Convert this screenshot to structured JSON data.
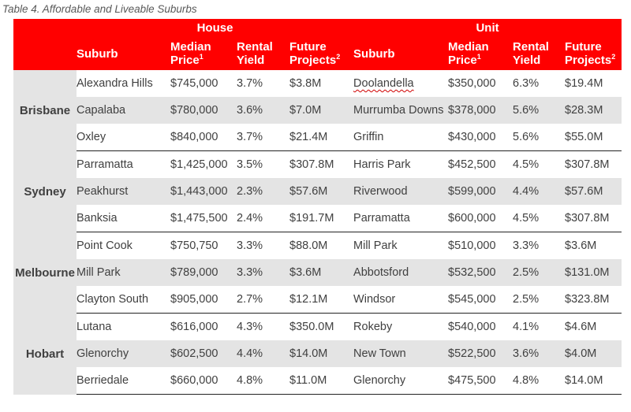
{
  "caption": "Table 4. Affordable and Liveable Suburbs",
  "header": {
    "house": "House",
    "unit": "Unit",
    "suburb": "Suburb",
    "median_price": "Median Price",
    "rental_yield": "Rental Yield",
    "future_projects": "Future Projects",
    "median_price_note": "1",
    "future_projects_note": "2"
  },
  "groups": [
    {
      "city": "Brisbane",
      "rows": [
        {
          "h_suburb": "Alexandra Hills",
          "h_price": "$745,000",
          "h_yield": "3.7%",
          "h_proj": "$3.8M",
          "u_suburb": "Doolandella",
          "u_price": "$350,000",
          "u_yield": "6.3%",
          "u_proj": "$19.4M"
        },
        {
          "h_suburb": "Capalaba",
          "h_price": "$780,000",
          "h_yield": "3.6%",
          "h_proj": "$7.0M",
          "u_suburb": "Murrumba Downs",
          "u_price": "$378,000",
          "u_yield": "5.6%",
          "u_proj": "$28.3M"
        },
        {
          "h_suburb": "Oxley",
          "h_price": "$840,000",
          "h_yield": "3.7%",
          "h_proj": "$21.4M",
          "u_suburb": "Griffin",
          "u_price": "$430,000",
          "u_yield": "5.6%",
          "u_proj": "$55.0M"
        }
      ]
    },
    {
      "city": "Sydney",
      "rows": [
        {
          "h_suburb": "Parramatta",
          "h_price": "$1,425,000",
          "h_yield": "3.5%",
          "h_proj": "$307.8M",
          "u_suburb": "Harris Park",
          "u_price": "$452,500",
          "u_yield": "4.5%",
          "u_proj": "$307.8M"
        },
        {
          "h_suburb": "Peakhurst",
          "h_price": "$1,443,000",
          "h_yield": "2.3%",
          "h_proj": "$57.6M",
          "u_suburb": "Riverwood",
          "u_price": "$599,000",
          "u_yield": "4.4%",
          "u_proj": "$57.6M"
        },
        {
          "h_suburb": "Banksia",
          "h_price": "$1,475,500",
          "h_yield": "2.4%",
          "h_proj": "$191.7M",
          "u_suburb": "Parramatta",
          "u_price": "$600,000",
          "u_yield": "4.5%",
          "u_proj": "$307.8M"
        }
      ]
    },
    {
      "city": "Melbourne",
      "rows": [
        {
          "h_suburb": "Point Cook",
          "h_price": "$750,750",
          "h_yield": "3.3%",
          "h_proj": "$88.0M",
          "u_suburb": "Mill Park",
          "u_price": "$510,000",
          "u_yield": "3.3%",
          "u_proj": "$3.6M"
        },
        {
          "h_suburb": "Mill Park",
          "h_price": "$789,000",
          "h_yield": "3.3%",
          "h_proj": "$3.6M",
          "u_suburb": "Abbotsford",
          "u_price": "$532,500",
          "u_yield": "2.5%",
          "u_proj": "$131.0M"
        },
        {
          "h_suburb": "Clayton South",
          "h_price": "$905,000",
          "h_yield": "2.7%",
          "h_proj": "$12.1M",
          "u_suburb": "Windsor",
          "u_price": "$545,000",
          "u_yield": "2.5%",
          "u_proj": "$323.8M"
        }
      ]
    },
    {
      "city": "Hobart",
      "rows": [
        {
          "h_suburb": "Lutana",
          "h_price": "$616,000",
          "h_yield": "4.3%",
          "h_proj": "$350.0M",
          "u_suburb": "Rokeby",
          "u_price": "$540,000",
          "u_yield": "4.1%",
          "u_proj": "$4.6M"
        },
        {
          "h_suburb": "Glenorchy",
          "h_price": "$602,500",
          "h_yield": "4.4%",
          "h_proj": "$14.0M",
          "u_suburb": "New Town",
          "u_price": "$522,500",
          "u_yield": "3.6%",
          "u_proj": "$4.0M"
        },
        {
          "h_suburb": "Berriedale",
          "h_price": "$660,000",
          "h_yield": "4.8%",
          "h_proj": "$11.0M",
          "u_suburb": "Glenorchy",
          "u_price": "$475,500",
          "u_yield": "4.8%",
          "u_proj": "$14.0M"
        }
      ]
    }
  ]
}
